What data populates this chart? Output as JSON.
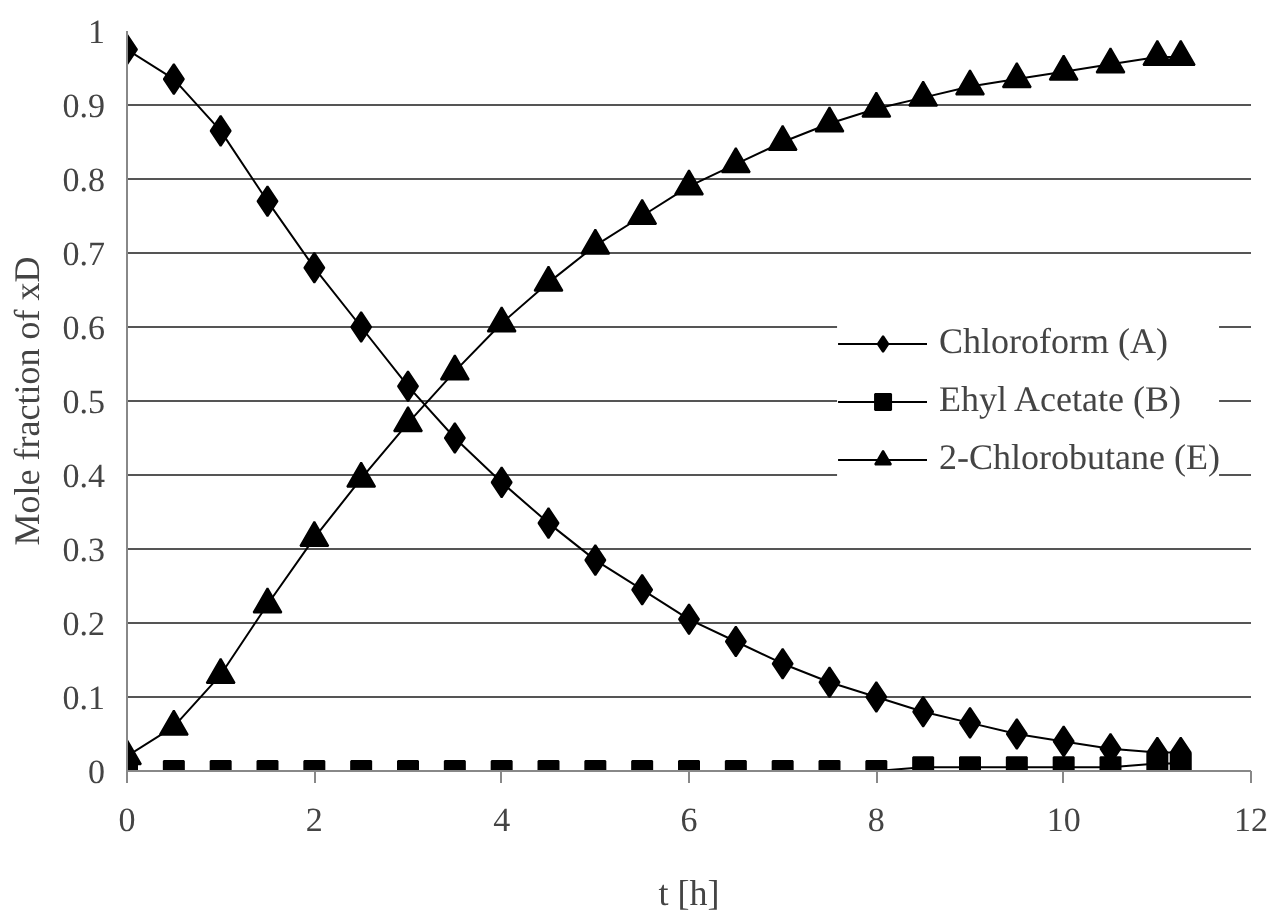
{
  "chart_data": {
    "type": "line",
    "xlabel": "t [h]",
    "ylabel": "Mole fraction of xD",
    "x": [
      0,
      0.5,
      1,
      1.5,
      2,
      2.5,
      3,
      3.5,
      4,
      4.5,
      5,
      5.5,
      6,
      6.5,
      7,
      7.5,
      8,
      8.5,
      9,
      9.5,
      10,
      10.5,
      11,
      11.25
    ],
    "series": [
      {
        "name": "Chloroform (A)",
        "color": "#000000",
        "marker": "diamond",
        "values": [
          0.975,
          0.935,
          0.865,
          0.77,
          0.68,
          0.6,
          0.52,
          0.45,
          0.39,
          0.335,
          0.285,
          0.245,
          0.205,
          0.175,
          0.145,
          0.12,
          0.1,
          0.08,
          0.065,
          0.05,
          0.04,
          0.03,
          0.025,
          0.025
        ]
      },
      {
        "name": "Ehyl Acetate (B)",
        "color": "#000000",
        "marker": "square",
        "values": [
          0,
          0,
          0,
          0,
          0,
          0,
          0,
          0,
          0,
          0,
          0,
          0,
          0,
          0,
          0,
          0,
          0,
          0.005,
          0.005,
          0.005,
          0.005,
          0.005,
          0.01,
          0.01
        ]
      },
      {
        "name": "2-Chlorobutane (E)",
        "color": "#000000",
        "marker": "triangle",
        "values": [
          0.02,
          0.06,
          0.13,
          0.225,
          0.315,
          0.395,
          0.47,
          0.54,
          0.605,
          0.66,
          0.71,
          0.75,
          0.79,
          0.82,
          0.85,
          0.875,
          0.895,
          0.91,
          0.925,
          0.935,
          0.945,
          0.955,
          0.965,
          0.965
        ]
      }
    ],
    "xlim": [
      0,
      12
    ],
    "xticks": [
      0,
      2,
      4,
      6,
      8,
      10,
      12
    ],
    "ylim": [
      0,
      1
    ],
    "yticks": [
      0,
      0.1,
      0.2,
      0.3,
      0.4,
      0.5,
      0.6,
      0.7,
      0.8,
      0.9,
      1
    ],
    "grid": "y",
    "legend": "right",
    "line_style": "solid"
  }
}
